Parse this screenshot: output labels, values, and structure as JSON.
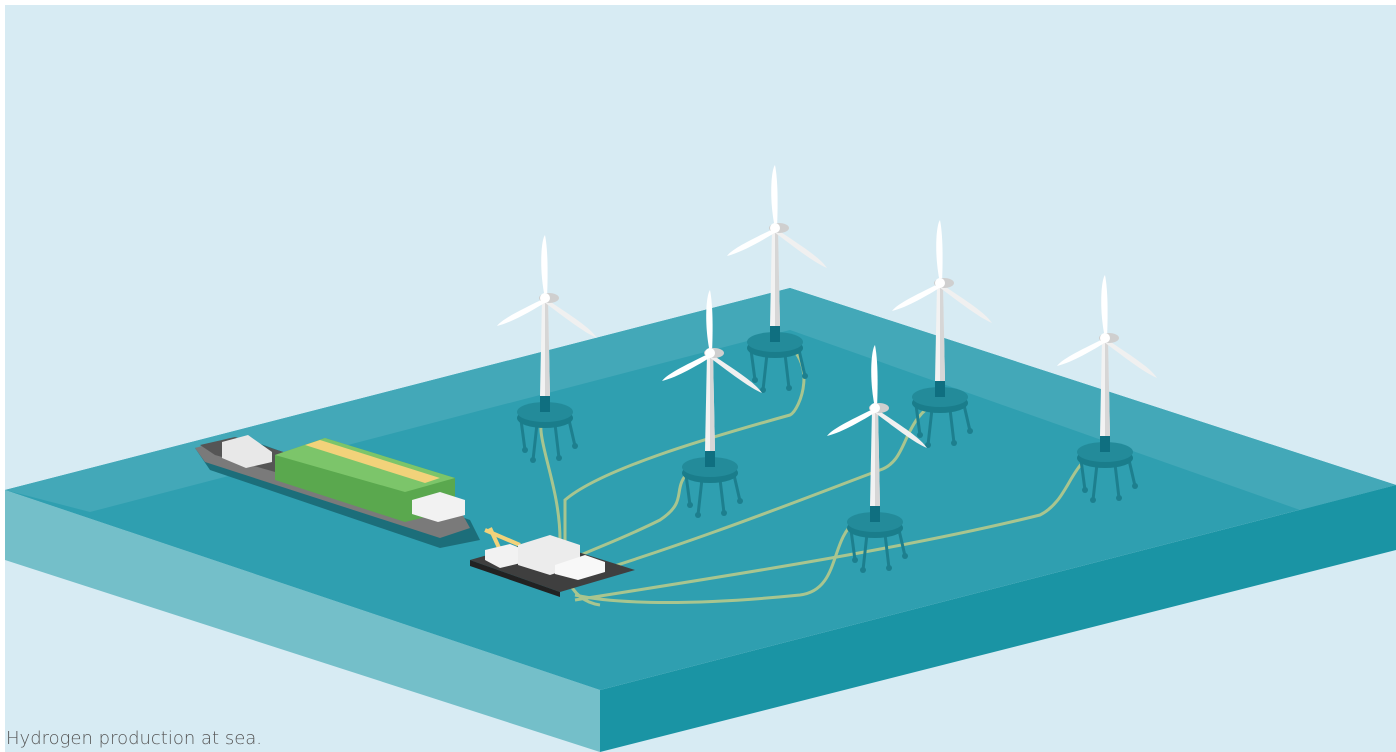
{
  "caption": "Hydrogen production at sea."
}
